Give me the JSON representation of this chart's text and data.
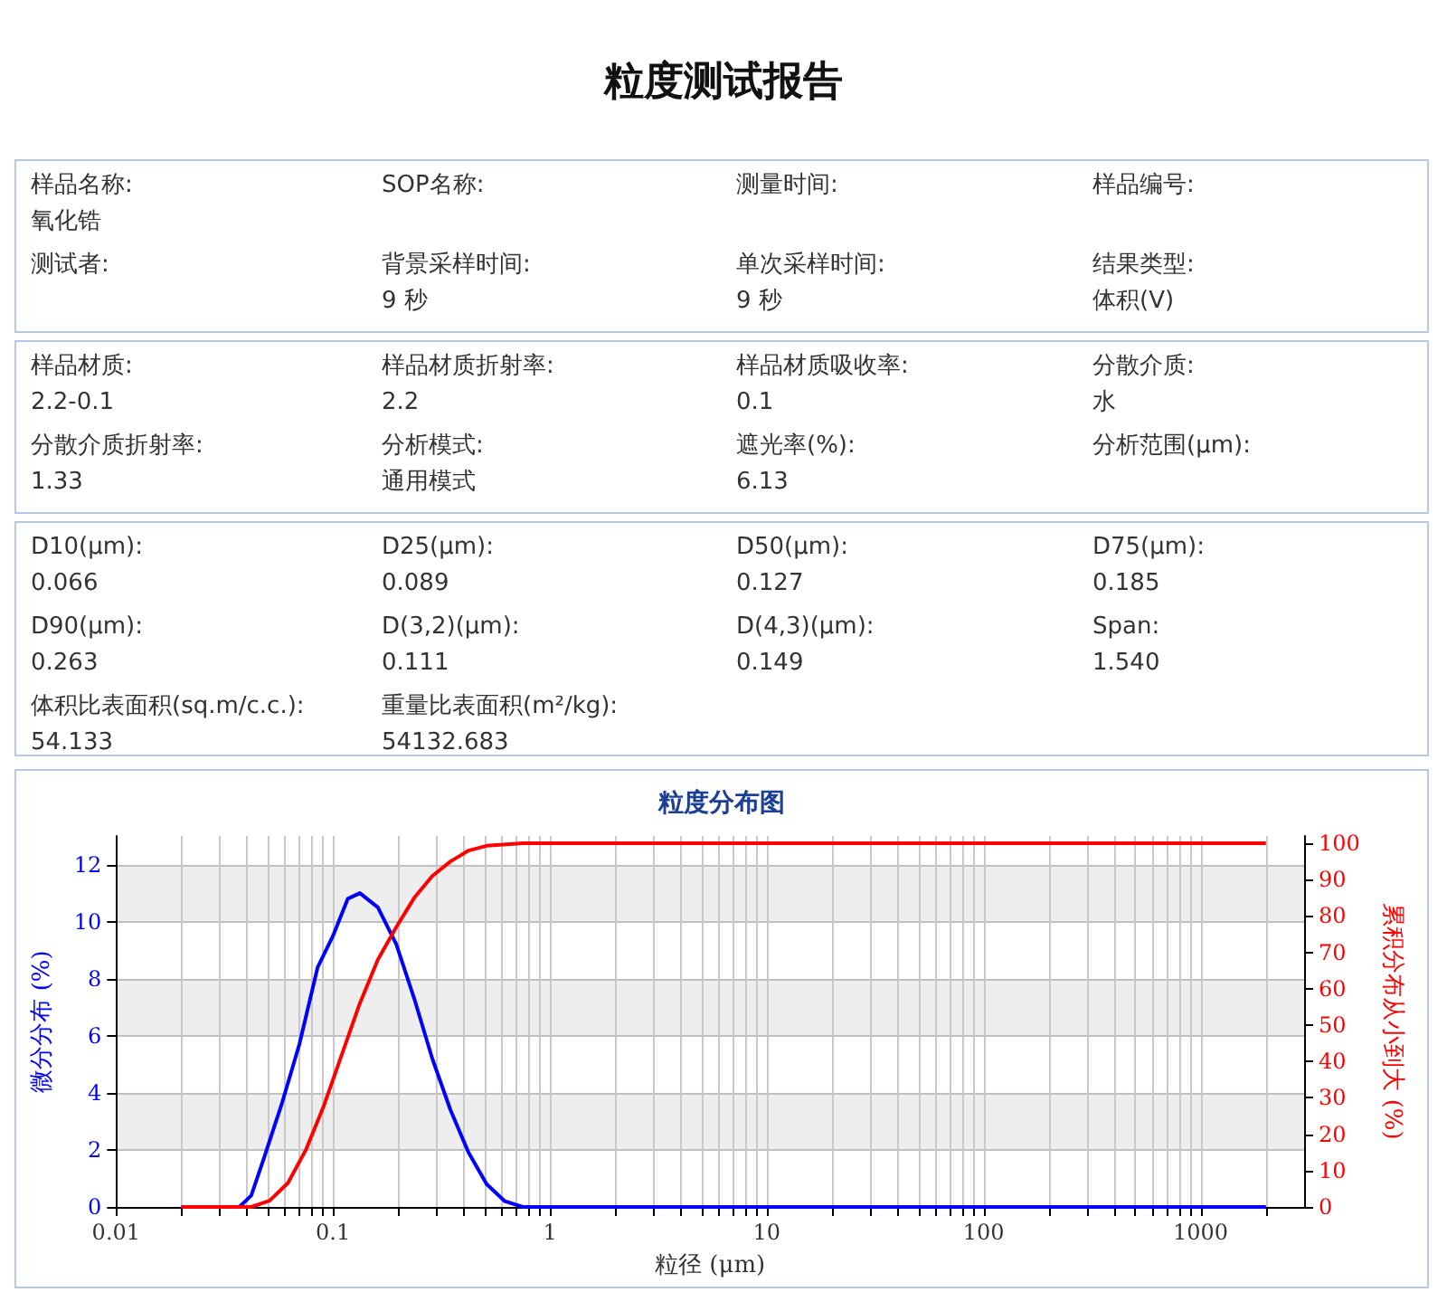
{
  "chart_data": [
    {
      "type": "other",
      "title": "粒度测试报告"
    },
    {
      "type": "other",
      "annotations": [
        "样品名称:\n氧化锆",
        "SOP名称:",
        "测量时间:",
        "样品编号:",
        "测试者:",
        "背景采样时间:\n9 秒",
        "单次采样时间:\n9 秒",
        "结果类型:\n体积(V)"
      ]
    },
    {
      "type": "other",
      "annotations": [
        "样品材质:\n2.2-0.1",
        "样品材质折射率:\n2.2",
        "样品材质吸收率:\n0.1",
        "分散介质:\n水",
        "分散介质折射率:\n1.33",
        "分析模式:\n通用模式",
        "遮光率(%):\n6.13",
        "分析范围(μm):"
      ]
    },
    {
      "type": "other",
      "annotations": [
        "D10(μm):\n0.066",
        "D25(μm):\n0.089",
        "D50(μm):\n0.127",
        "D75(μm):\n0.185",
        "D90(μm):\n0.263",
        "D(3,2)(μm):\n0.111",
        "D(4,3)(μm):\n0.149",
        "Span:\n1.540",
        "体积比表面积(sq.m/c.c.):\n54.133",
        "重量比表面积(m²/kg):\n54132.683"
      ]
    },
    {
      "type": "line",
      "title": "粒度分布图",
      "xlabel": "粒径 (μm)",
      "ylabel": "微分分布 (%)",
      "y2label": "累积分布从小到大 (%)",
      "log": "x",
      "grid": true,
      "marker": "none",
      "line_style": "solid",
      "xlim": [
        0.01,
        3000
      ],
      "ylim": [
        0,
        13
      ],
      "y2lim": [
        0,
        102
      ],
      "xticks": [
        0.01,
        {
          "value": 0.02,
          "label": null
        },
        {
          "value": 0.03,
          "label": null
        },
        {
          "value": 0.04,
          "label": null
        },
        {
          "value": 0.05,
          "label": null
        },
        {
          "value": 0.06,
          "label": null
        },
        {
          "value": 0.07,
          "label": null
        },
        {
          "value": 0.08,
          "label": null
        },
        {
          "value": 0.09,
          "label": null
        },
        0.1,
        {
          "value": 0.2,
          "label": null
        },
        {
          "value": 0.3,
          "label": null
        },
        {
          "value": 0.4,
          "label": null
        },
        {
          "value": 0.5,
          "label": null
        },
        {
          "value": 0.6,
          "label": null
        },
        {
          "value": 0.7,
          "label": null
        },
        {
          "value": 0.8,
          "label": null
        },
        {
          "value": 0.9,
          "label": null
        },
        1,
        {
          "value": 2,
          "label": null
        },
        {
          "value": 3,
          "label": null
        },
        {
          "value": 4,
          "label": null
        },
        {
          "value": 5,
          "label": null
        },
        {
          "value": 6,
          "label": null
        },
        {
          "value": 7,
          "label": null
        },
        {
          "value": 8,
          "label": null
        },
        {
          "value": 9,
          "label": null
        },
        10,
        {
          "value": 20,
          "label": null
        },
        {
          "value": 30,
          "label": null
        },
        {
          "value": 40,
          "label": null
        },
        {
          "value": 50,
          "label": null
        },
        {
          "value": 60,
          "label": null
        },
        {
          "value": 70,
          "label": null
        },
        {
          "value": 80,
          "label": null
        },
        {
          "value": 90,
          "label": null
        },
        100,
        {
          "value": 200,
          "label": null
        },
        {
          "value": 300,
          "label": null
        },
        {
          "value": 400,
          "label": null
        },
        {
          "value": 500,
          "label": null
        },
        {
          "value": 600,
          "label": null
        },
        {
          "value": 700,
          "label": null
        },
        {
          "value": 800,
          "label": null
        },
        {
          "value": 900,
          "label": null
        },
        1000,
        {
          "value": 2000,
          "label": null
        }
      ],
      "yticks": [
        0,
        2,
        4,
        6,
        8,
        10,
        12
      ],
      "y2ticks": [
        0,
        10,
        20,
        30,
        40,
        50,
        60,
        70,
        80,
        90,
        100
      ],
      "series": [
        {
          "color": "#0000ff",
          "x": [
            0.02,
            0.037,
            0.042,
            0.048,
            0.058,
            0.07,
            0.085,
            0.1,
            0.117,
            0.133,
            0.161,
            0.196,
            0.237,
            0.287,
            0.348,
            0.422,
            0.511,
            0.62,
            0.75,
            2000
          ],
          "values": [
            0,
            0,
            0.4,
            1.7,
            3.6,
            5.7,
            8.4,
            9.5,
            10.8,
            11.0,
            10.5,
            9.2,
            7.3,
            5.2,
            3.4,
            1.9,
            0.8,
            0.2,
            0,
            0
          ]
        },
        {
          "color": "#ff0000",
          "axis": "y2",
          "x": [
            0.02,
            0.042,
            0.051,
            0.062,
            0.075,
            0.091,
            0.11,
            0.133,
            0.161,
            0.196,
            0.237,
            0.287,
            0.348,
            0.422,
            0.511,
            0.75,
            2000
          ],
          "values": [
            0,
            0,
            1.7,
            6.6,
            15.7,
            28,
            42,
            56,
            68,
            77,
            85,
            91,
            95,
            98,
            99.3,
            100,
            100
          ]
        }
      ]
    }
  ]
}
